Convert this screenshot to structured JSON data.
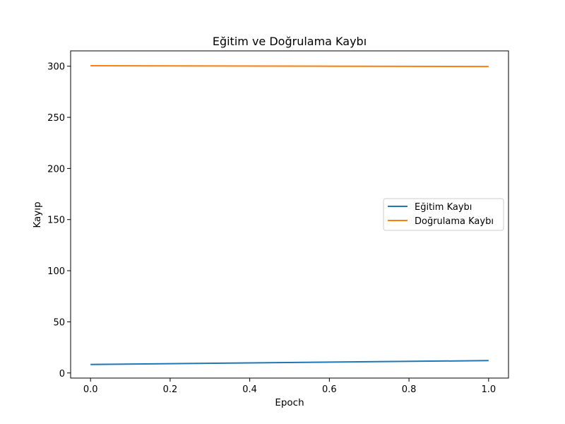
{
  "chart_data": {
    "type": "line",
    "title": "Eğitim ve Doğrulama Kaybı",
    "xlabel": "Epoch",
    "ylabel": "Kayıp",
    "xlim": [
      -0.05,
      1.05
    ],
    "ylim": [
      -5,
      315
    ],
    "x_ticks": [
      0.0,
      0.2,
      0.4,
      0.6,
      0.8,
      1.0
    ],
    "x_tick_labels": [
      "0.0",
      "0.2",
      "0.4",
      "0.6",
      "0.8",
      "1.0"
    ],
    "y_ticks": [
      0,
      50,
      100,
      150,
      200,
      250,
      300
    ],
    "y_tick_labels": [
      "0",
      "50",
      "100",
      "150",
      "200",
      "250",
      "300"
    ],
    "grid": false,
    "legend_position": "center-right",
    "x": [
      0,
      1
    ],
    "series": [
      {
        "name": "Eğitim Kaybı",
        "color": "#1f77b4",
        "values": [
          8.3,
          12.1
        ]
      },
      {
        "name": "Doğrulama Kaybı",
        "color": "#ff7f0e",
        "values": [
          300.5,
          299.7
        ]
      }
    ]
  }
}
